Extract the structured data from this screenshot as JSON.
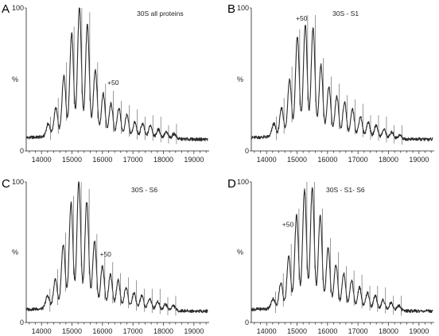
{
  "chart_data": [
    {
      "type": "line",
      "panel_label": "A",
      "title": "30S all proteins",
      "ylabel": "%",
      "ylim": [
        0,
        100
      ],
      "y_ticks": [
        "0",
        "100"
      ],
      "xlim": [
        13500,
        19500
      ],
      "x_ticks": [
        "14000",
        "15000",
        "16000",
        "17000",
        "18000",
        "19000"
      ],
      "annotations": [
        {
          "text": "+50",
          "x": 16350,
          "y": 46
        }
      ],
      "series": [
        {
          "values": [
            {
              "x": 14220,
              "y": 19
            },
            {
              "x": 14470,
              "y": 30
            },
            {
              "x": 14735,
              "y": 53
            },
            {
              "x": 14990,
              "y": 82
            },
            {
              "x": 15245,
              "y": 100
            },
            {
              "x": 15505,
              "y": 88
            },
            {
              "x": 15765,
              "y": 57
            },
            {
              "x": 16025,
              "y": 40
            },
            {
              "x": 16280,
              "y": 33
            },
            {
              "x": 16540,
              "y": 30
            },
            {
              "x": 16800,
              "y": 25
            },
            {
              "x": 17060,
              "y": 20
            },
            {
              "x": 17315,
              "y": 19
            },
            {
              "x": 17575,
              "y": 18
            },
            {
              "x": 17835,
              "y": 15
            },
            {
              "x": 18090,
              "y": 13
            },
            {
              "x": 18350,
              "y": 12
            }
          ]
        }
      ]
    },
    {
      "type": "line",
      "panel_label": "B",
      "title": "30S - S1",
      "ylabel": "%",
      "ylim": [
        0,
        100
      ],
      "y_ticks": [
        "0",
        "100"
      ],
      "xlim": [
        13500,
        19500
      ],
      "x_ticks": [
        "14000",
        "15000",
        "16000",
        "17000",
        "18000",
        "19000"
      ],
      "annotations": [
        {
          "text": "+50",
          "x": 15150,
          "y": 91
        }
      ],
      "series": [
        {
          "values": [
            {
              "x": 14240,
              "y": 19
            },
            {
              "x": 14495,
              "y": 30
            },
            {
              "x": 14755,
              "y": 50
            },
            {
              "x": 15010,
              "y": 80
            },
            {
              "x": 15270,
              "y": 88
            },
            {
              "x": 15525,
              "y": 86
            },
            {
              "x": 15785,
              "y": 60
            },
            {
              "x": 16045,
              "y": 45
            },
            {
              "x": 16305,
              "y": 38
            },
            {
              "x": 16560,
              "y": 34
            },
            {
              "x": 16820,
              "y": 29
            },
            {
              "x": 17080,
              "y": 24
            },
            {
              "x": 17335,
              "y": 20
            },
            {
              "x": 17595,
              "y": 18
            },
            {
              "x": 17855,
              "y": 15
            },
            {
              "x": 18110,
              "y": 13
            },
            {
              "x": 18370,
              "y": 11
            }
          ]
        }
      ]
    },
    {
      "type": "line",
      "panel_label": "C",
      "title": "30S - S6",
      "ylabel": "%",
      "ylim": [
        0,
        100
      ],
      "y_ticks": [
        "0",
        "100"
      ],
      "xlim": [
        13500,
        19500
      ],
      "x_ticks": [
        "14000",
        "15000",
        "16000",
        "17000",
        "18000",
        "19000"
      ],
      "annotations": [
        {
          "text": "+50",
          "x": 16100,
          "y": 47
        }
      ],
      "series": [
        {
          "values": [
            {
              "x": 14200,
              "y": 19
            },
            {
              "x": 14455,
              "y": 31
            },
            {
              "x": 14715,
              "y": 55
            },
            {
              "x": 14970,
              "y": 85
            },
            {
              "x": 15225,
              "y": 100
            },
            {
              "x": 15485,
              "y": 86
            },
            {
              "x": 15740,
              "y": 58
            },
            {
              "x": 16000,
              "y": 40
            },
            {
              "x": 16260,
              "y": 34
            },
            {
              "x": 16515,
              "y": 30
            },
            {
              "x": 16775,
              "y": 25
            },
            {
              "x": 17035,
              "y": 21
            },
            {
              "x": 17290,
              "y": 19
            },
            {
              "x": 17550,
              "y": 17
            },
            {
              "x": 17810,
              "y": 15
            },
            {
              "x": 18065,
              "y": 13
            },
            {
              "x": 18325,
              "y": 12
            }
          ]
        }
      ]
    },
    {
      "type": "line",
      "panel_label": "D",
      "title": "30S - S1- S6",
      "ylabel": "%",
      "ylim": [
        0,
        100
      ],
      "y_ticks": [
        "0",
        "100"
      ],
      "xlim": [
        13500,
        19500
      ],
      "x_ticks": [
        "14000",
        "15000",
        "16000",
        "17000",
        "18000",
        "19000"
      ],
      "annotations": [
        {
          "text": "+50",
          "x": 14700,
          "y": 68
        }
      ],
      "series": [
        {
          "values": [
            {
              "x": 14215,
              "y": 17
            },
            {
              "x": 14470,
              "y": 28
            },
            {
              "x": 14730,
              "y": 47
            },
            {
              "x": 14985,
              "y": 76
            },
            {
              "x": 15245,
              "y": 94
            },
            {
              "x": 15500,
              "y": 96
            },
            {
              "x": 15760,
              "y": 76
            },
            {
              "x": 16020,
              "y": 53
            },
            {
              "x": 16275,
              "y": 41
            },
            {
              "x": 16535,
              "y": 35
            },
            {
              "x": 16790,
              "y": 30
            },
            {
              "x": 17050,
              "y": 25
            },
            {
              "x": 17310,
              "y": 21
            },
            {
              "x": 17565,
              "y": 19
            },
            {
              "x": 17825,
              "y": 16
            },
            {
              "x": 18085,
              "y": 14
            },
            {
              "x": 18340,
              "y": 12
            }
          ]
        }
      ]
    }
  ]
}
